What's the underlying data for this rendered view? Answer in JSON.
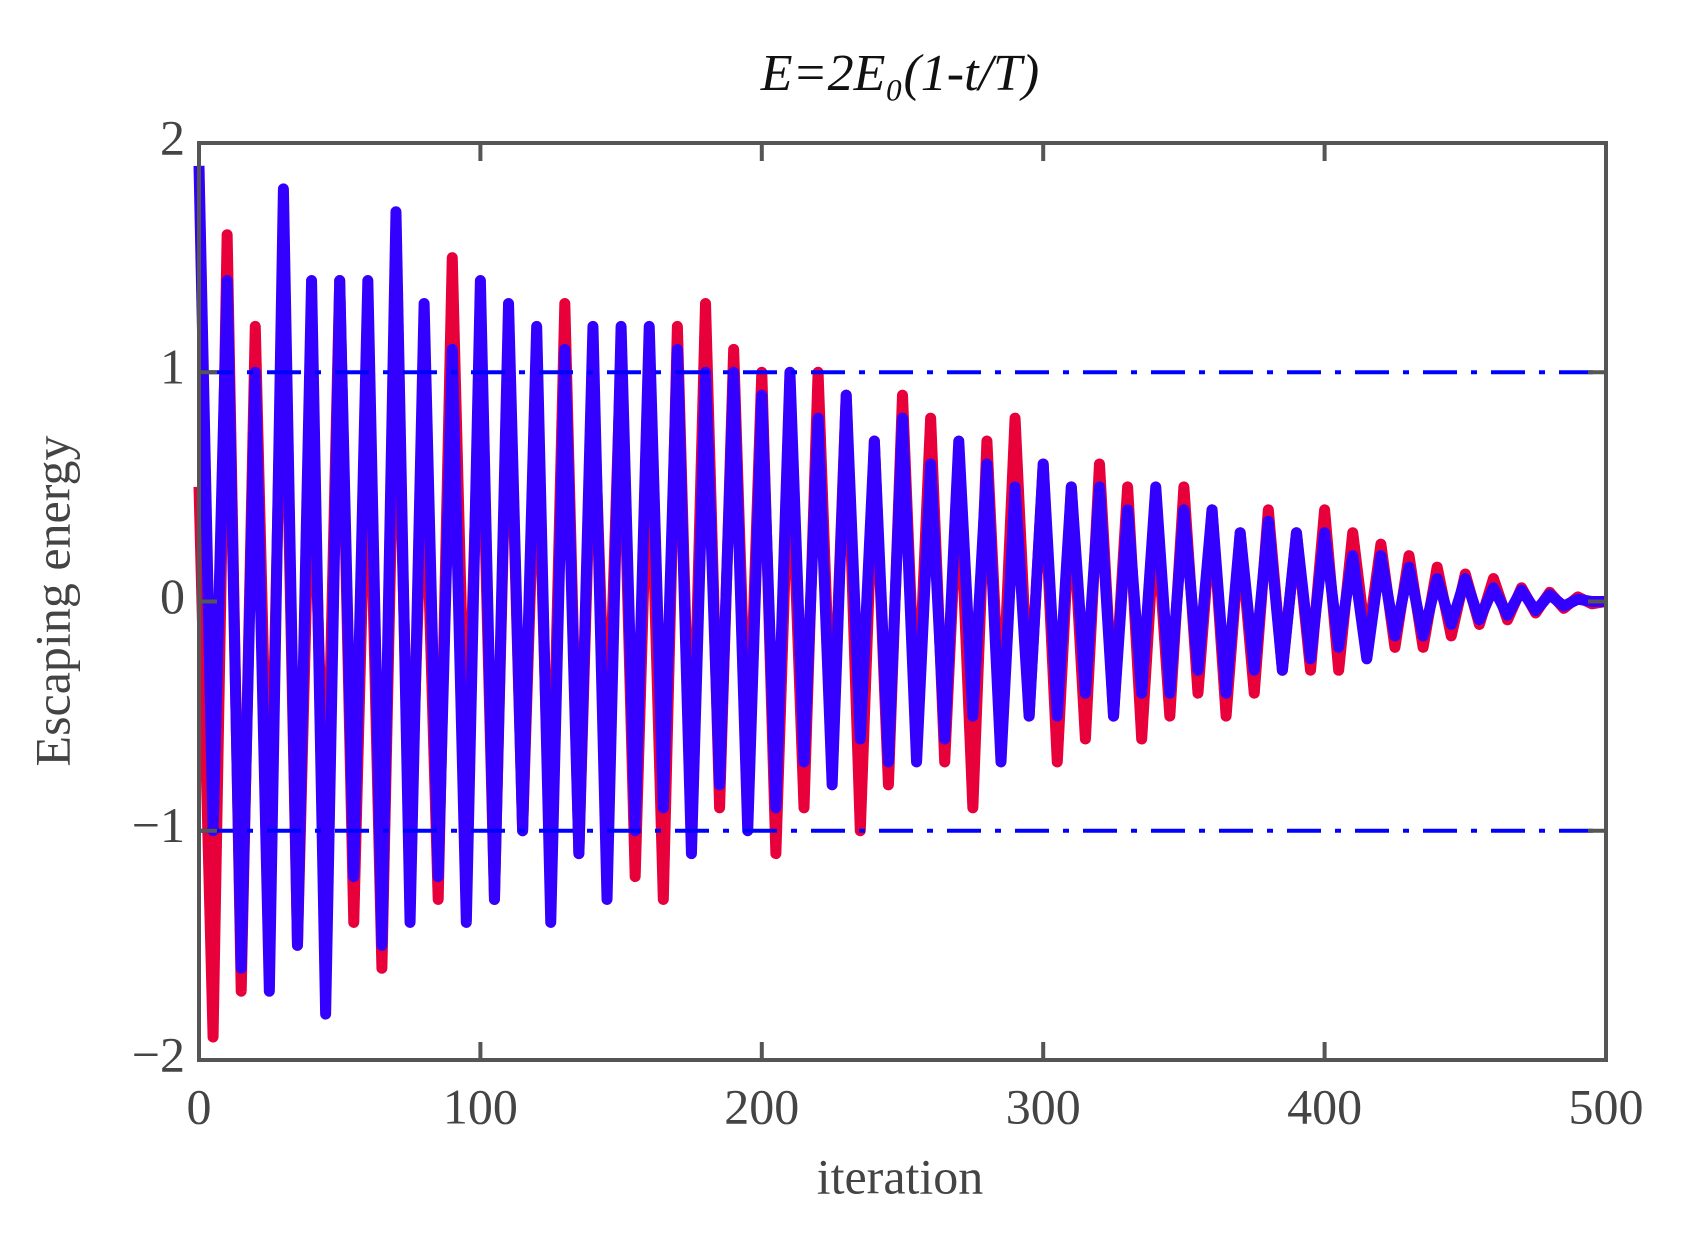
{
  "chart_data": {
    "type": "line",
    "title": "E=2E₀(1-t/T)",
    "x_label": "iteration",
    "y_label": "Escaping energy",
    "xlim": [
      0,
      500
    ],
    "xticks": [
      0,
      100,
      200,
      300,
      400,
      500
    ],
    "ylim": [
      -2,
      2
    ],
    "yticks": [
      {
        "value": -2,
        "label": "−2"
      },
      {
        "value": -1,
        "label": "−1"
      },
      0,
      1,
      2
    ],
    "reference_lines": {
      "values": [
        1,
        -1
      ],
      "color": "#0000ff",
      "style": "dashdot"
    },
    "x": [
      0,
      5,
      10,
      15,
      20,
      25,
      30,
      35,
      40,
      45,
      50,
      55,
      60,
      65,
      70,
      75,
      80,
      85,
      90,
      95,
      100,
      105,
      110,
      115,
      120,
      125,
      130,
      135,
      140,
      145,
      150,
      155,
      160,
      165,
      170,
      175,
      180,
      185,
      190,
      195,
      200,
      205,
      210,
      215,
      220,
      225,
      230,
      235,
      240,
      245,
      250,
      255,
      260,
      265,
      270,
      275,
      280,
      285,
      290,
      295,
      300,
      305,
      310,
      315,
      320,
      325,
      330,
      335,
      340,
      345,
      350,
      355,
      360,
      365,
      370,
      375,
      380,
      385,
      390,
      395,
      400,
      405,
      410,
      415,
      420,
      425,
      430,
      435,
      440,
      445,
      450,
      455,
      460,
      465,
      470,
      475,
      480,
      485,
      490,
      495,
      500
    ],
    "series": [
      {
        "color": "#e8003a",
        "values": [
          0.5,
          -1.9,
          1.6,
          -1.7,
          1.2,
          -1.3,
          1.5,
          -1.5,
          0.9,
          -1.2,
          1.4,
          -1.4,
          1.0,
          -1.6,
          1.3,
          -1.1,
          0.8,
          -1.3,
          1.5,
          -0.9,
          1.1,
          -1.3,
          1.2,
          -1.0,
          0.9,
          -1.2,
          1.3,
          -1.1,
          1.0,
          -0.8,
          1.1,
          -1.2,
          0.9,
          -1.3,
          1.2,
          -1.0,
          1.3,
          -0.9,
          1.1,
          -0.8,
          1.0,
          -1.1,
          0.8,
          -0.9,
          1.0,
          -0.7,
          0.9,
          -1.0,
          0.7,
          -0.8,
          0.9,
          -0.6,
          0.8,
          -0.7,
          0.6,
          -0.9,
          0.7,
          -0.6,
          0.8,
          -0.5,
          0.6,
          -0.7,
          0.5,
          -0.6,
          0.6,
          -0.5,
          0.5,
          -0.6,
          0.4,
          -0.5,
          0.5,
          -0.4,
          0.4,
          -0.5,
          0.3,
          -0.4,
          0.4,
          -0.3,
          0.3,
          -0.3,
          0.4,
          -0.3,
          0.3,
          -0.2,
          0.25,
          -0.2,
          0.2,
          -0.2,
          0.15,
          -0.15,
          0.12,
          -0.1,
          0.1,
          -0.08,
          0.06,
          -0.05,
          0.04,
          -0.03,
          0.02,
          -0.01,
          0.0
        ]
      },
      {
        "color": "#3300ff",
        "values": [
          1.9,
          -1.0,
          1.4,
          -1.6,
          1.0,
          -1.7,
          1.8,
          -1.5,
          1.4,
          -1.8,
          1.4,
          -1.2,
          1.4,
          -1.5,
          1.7,
          -1.4,
          1.3,
          -1.2,
          1.1,
          -1.4,
          1.4,
          -1.3,
          1.3,
          -1.0,
          1.2,
          -1.4,
          1.1,
          -1.1,
          1.2,
          -1.3,
          1.2,
          -1.0,
          1.2,
          -0.9,
          1.1,
          -1.1,
          1.0,
          -0.8,
          1.0,
          -1.0,
          0.9,
          -0.9,
          1.0,
          -0.7,
          0.8,
          -0.8,
          0.9,
          -0.6,
          0.7,
          -0.7,
          0.8,
          -0.7,
          0.6,
          -0.6,
          0.7,
          -0.5,
          0.6,
          -0.7,
          0.5,
          -0.5,
          0.6,
          -0.5,
          0.5,
          -0.4,
          0.5,
          -0.5,
          0.4,
          -0.4,
          0.5,
          -0.4,
          0.4,
          -0.3,
          0.4,
          -0.4,
          0.3,
          -0.3,
          0.35,
          -0.3,
          0.3,
          -0.25,
          0.3,
          -0.2,
          0.2,
          -0.25,
          0.2,
          -0.15,
          0.15,
          -0.15,
          0.1,
          -0.1,
          0.1,
          -0.08,
          0.06,
          -0.06,
          0.05,
          -0.04,
          0.03,
          -0.02,
          0.01,
          0.0,
          0.0
        ]
      }
    ]
  }
}
